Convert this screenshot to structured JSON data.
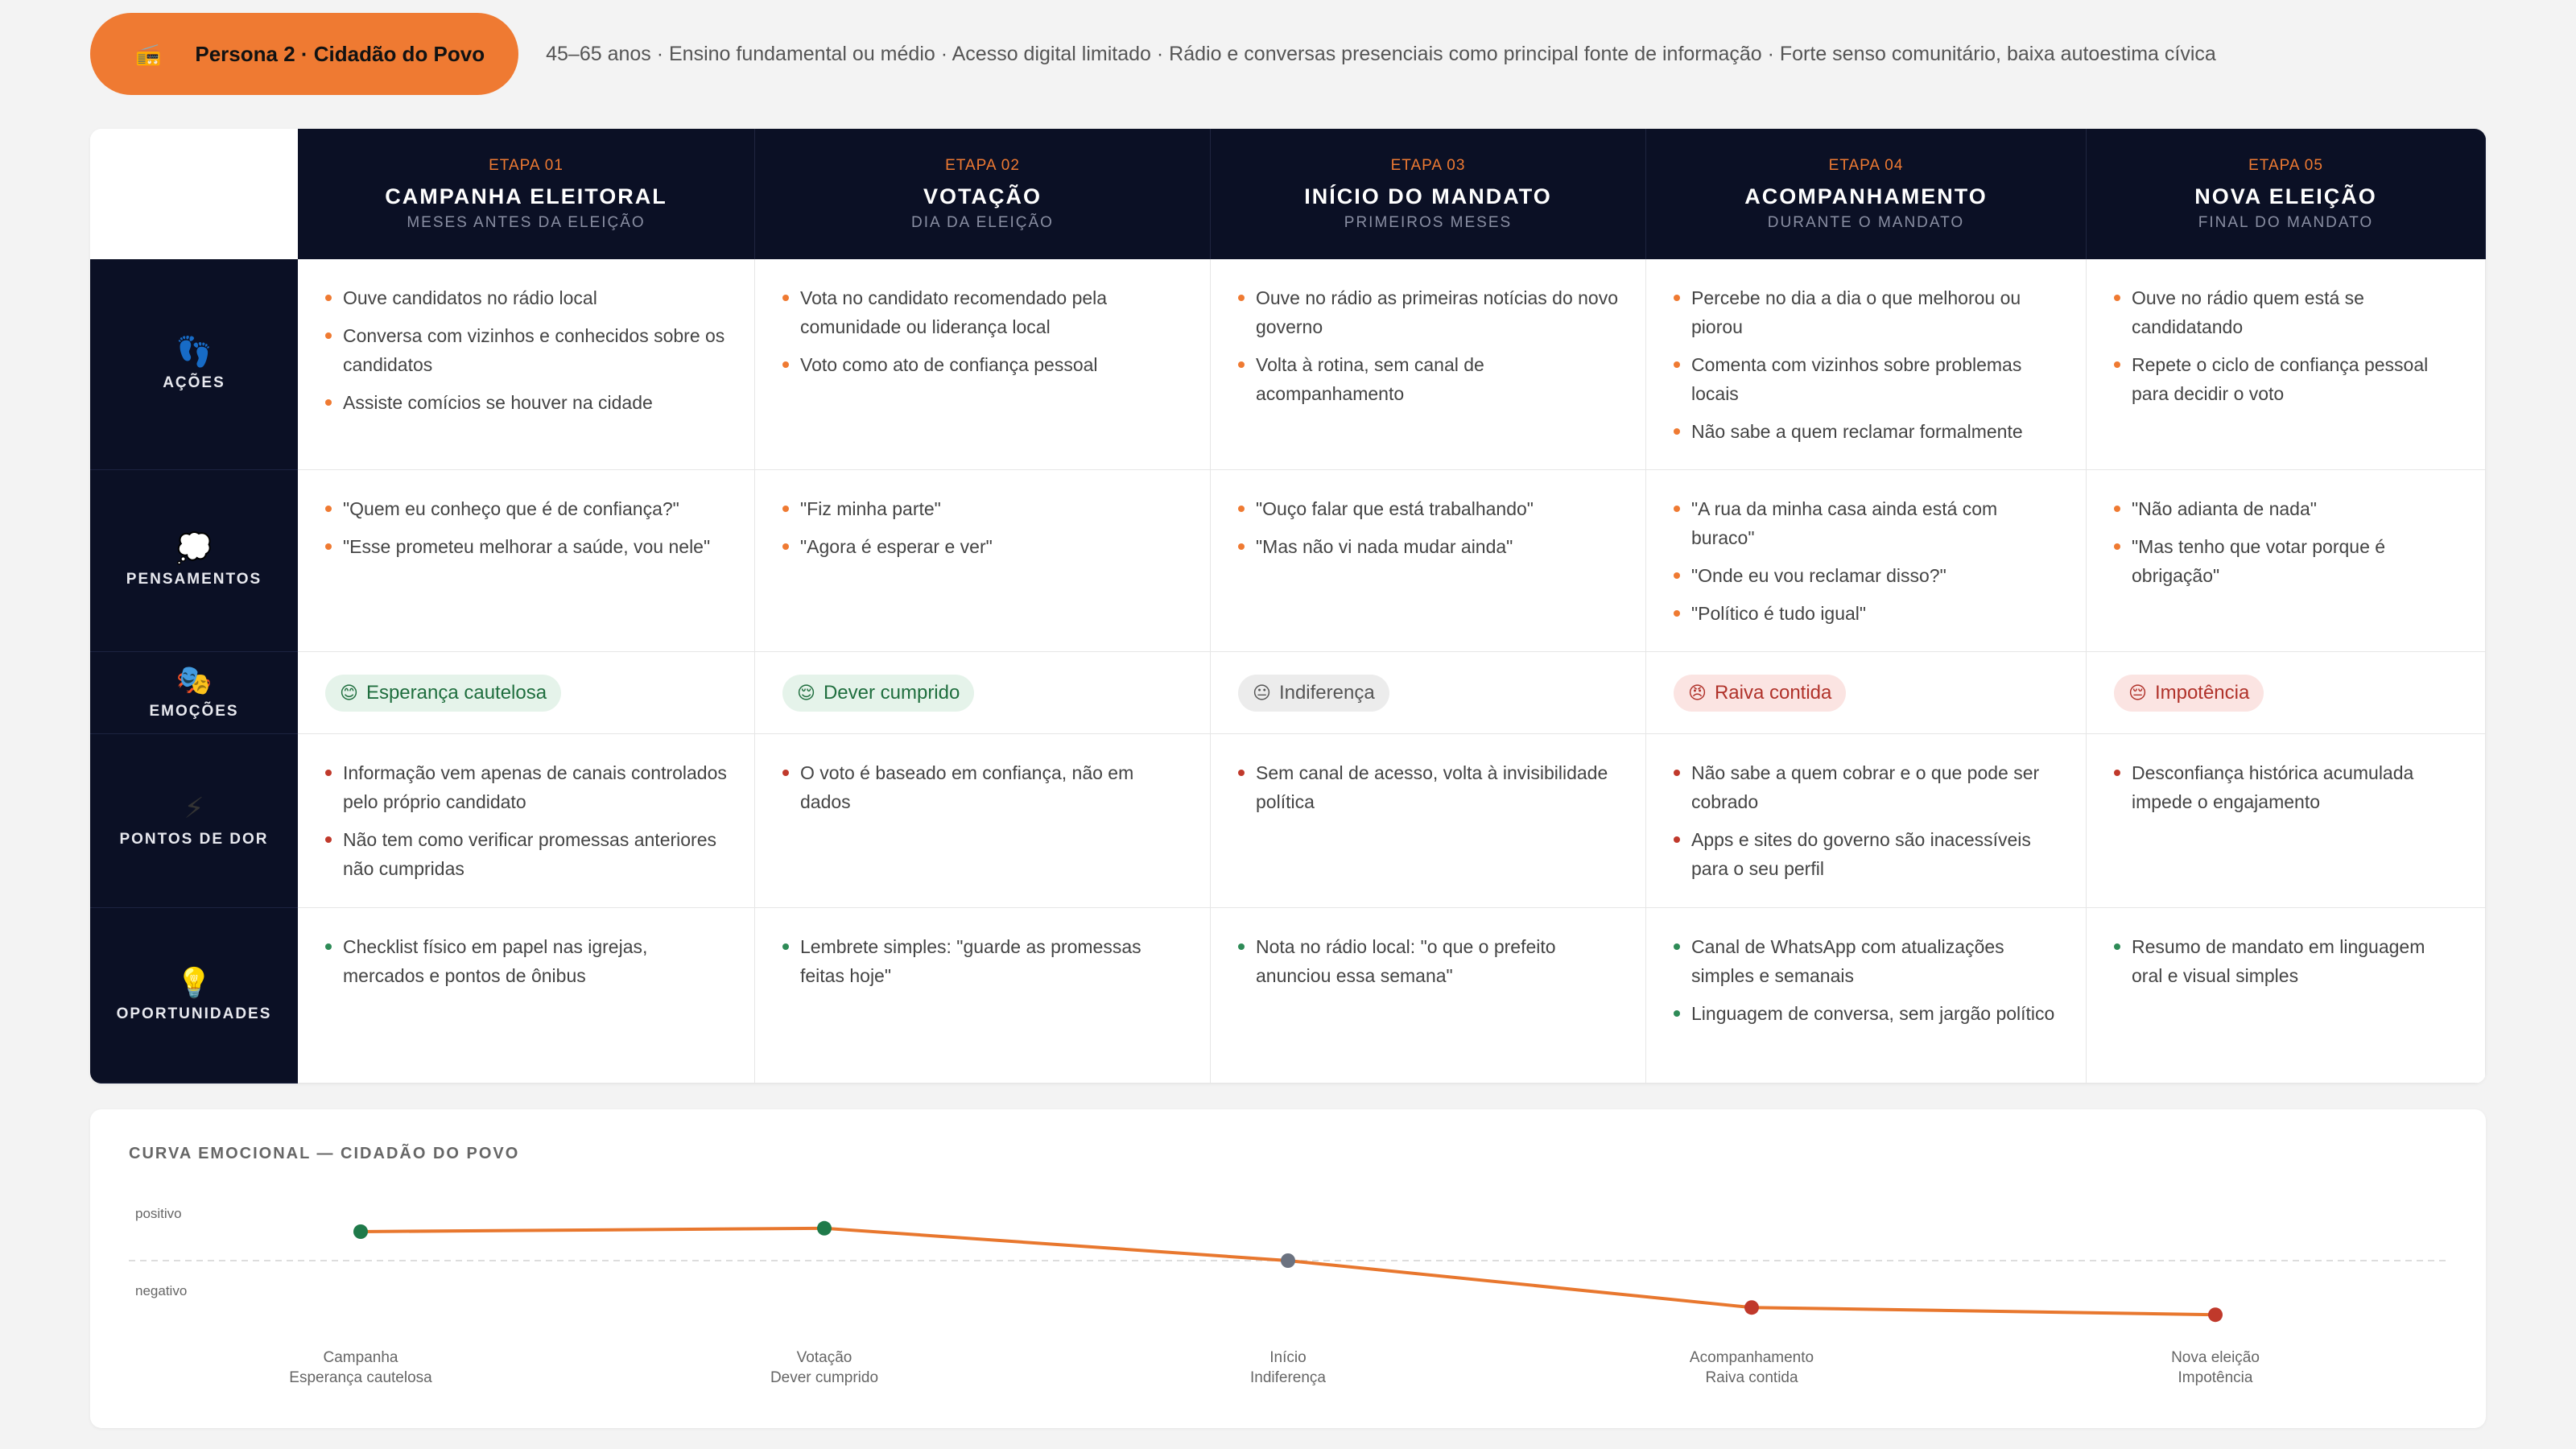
{
  "persona": {
    "icon": "📻",
    "name": "Persona 2 · Cidadão do Povo",
    "description": "45–65 anos · Ensino fundamental ou médio · Acesso digital limitado · Rádio e conversas presenciais como principal fonte de informação · Forte senso comunitário, baixa autoestima cívica"
  },
  "stages": [
    {
      "num": "ETAPA 01",
      "title": "CAMPANHA ELEITORAL",
      "sub": "MESES ANTES DA ELEIÇÃO"
    },
    {
      "num": "ETAPA 02",
      "title": "VOTAÇÃO",
      "sub": "DIA DA ELEIÇÃO"
    },
    {
      "num": "ETAPA 03",
      "title": "INÍCIO DO MANDATO",
      "sub": "PRIMEIROS MESES"
    },
    {
      "num": "ETAPA 04",
      "title": "ACOMPANHAMENTO",
      "sub": "DURANTE O MANDATO"
    },
    {
      "num": "ETAPA 05",
      "title": "NOVA ELEIÇÃO",
      "sub": "FINAL DO MANDATO"
    }
  ],
  "rows": {
    "actions": {
      "label": "AÇÕES",
      "icon": "👣",
      "cells": [
        [
          "Ouve candidatos no rádio local",
          "Conversa com vizinhos e conhecidos sobre os candidatos",
          "Assiste comícios se houver na cidade"
        ],
        [
          "Vota no candidato recomendado pela comunidade ou liderança local",
          "Voto como ato de confiança pessoal"
        ],
        [
          "Ouve no rádio as primeiras notícias do novo governo",
          "Volta à rotina, sem canal de acompanhamento"
        ],
        [
          "Percebe no dia a dia o que melhorou ou piorou",
          "Comenta com vizinhos sobre problemas locais",
          "Não sabe a quem reclamar formalmente"
        ],
        [
          "Ouve no rádio quem está se candidatando",
          "Repete o ciclo de confiança pessoal para decidir o voto"
        ]
      ]
    },
    "thoughts": {
      "label": "PENSAMENTOS",
      "icon": "💭",
      "cells": [
        [
          "\"Quem eu conheço que é de confiança?\"",
          "\"Esse prometeu melhorar a saúde, vou nele\""
        ],
        [
          "\"Fiz minha parte\"",
          "\"Agora é esperar e ver\""
        ],
        [
          "\"Ouço falar que está trabalhando\"",
          "\"Mas não vi nada mudar ainda\""
        ],
        [
          "\"A rua da minha casa ainda está com buraco\"",
          "\"Onde eu vou reclamar disso?\"",
          "\"Político é tudo igual\""
        ],
        [
          "\"Não adianta de nada\"",
          "\"Mas tenho que votar porque é obrigação\""
        ]
      ]
    },
    "emotions": {
      "label": "EMOÇÕES",
      "icon": "🎭",
      "cells": [
        {
          "emoji": "😊",
          "text": "Esperança cautelosa",
          "tone": "green"
        },
        {
          "emoji": "😌",
          "text": "Dever cumprido",
          "tone": "green"
        },
        {
          "emoji": "😐",
          "text": "Indiferença",
          "tone": "gray"
        },
        {
          "emoji": "😠",
          "text": "Raiva contida",
          "tone": "red"
        },
        {
          "emoji": "😔",
          "text": "Impotência",
          "tone": "red"
        }
      ]
    },
    "pains": {
      "label": "PONTOS DE DOR",
      "icon": "⚡",
      "cells": [
        [
          "Informação vem apenas de canais controlados pelo próprio candidato",
          "Não tem como verificar promessas anteriores não cumpridas"
        ],
        [
          "O voto é baseado em confiança, não em dados"
        ],
        [
          "Sem canal de acesso, volta à invisibilidade política"
        ],
        [
          "Não sabe a quem cobrar e o que pode ser cobrado",
          "Apps e sites do governo são inacessíveis para o seu perfil"
        ],
        [
          "Desconfiança histórica acumulada impede o engajamento"
        ]
      ]
    },
    "opportunities": {
      "label": "OPORTUNIDADES",
      "icon": "💡",
      "cells": [
        [
          "Checklist físico em papel nas igrejas, mercados e pontos de ônibus"
        ],
        [
          "Lembrete simples: \"guarde as promessas feitas hoje\""
        ],
        [
          "Nota no rádio local: \"o que o prefeito anunciou essa semana\""
        ],
        [
          "Canal de WhatsApp com atualizações simples e semanais",
          "Linguagem de conversa, sem jargão político"
        ],
        [
          "Resumo de mandato em linguagem oral e visual simples"
        ]
      ]
    }
  },
  "curve": {
    "title": "CURVA EMOCIONAL — CIDADÃO DO POVO",
    "y_positive": "positivo",
    "y_negative": "negativo",
    "line_color": "#e8772e",
    "points": [
      {
        "stage": "Campanha",
        "emotion": "Esperança cautelosa",
        "value": 0.6,
        "color": "#1f7a4a"
      },
      {
        "stage": "Votação",
        "emotion": "Dever cumprido",
        "value": 0.67,
        "color": "#1f7a4a"
      },
      {
        "stage": "Início",
        "emotion": "Indiferença",
        "value": 0.0,
        "color": "#6b7280"
      },
      {
        "stage": "Acompanhamento",
        "emotion": "Raiva contida",
        "value": -0.97,
        "color": "#c0392b"
      },
      {
        "stage": "Nova eleição",
        "emotion": "Impotência",
        "value": -1.12,
        "color": "#c0392b"
      }
    ]
  }
}
